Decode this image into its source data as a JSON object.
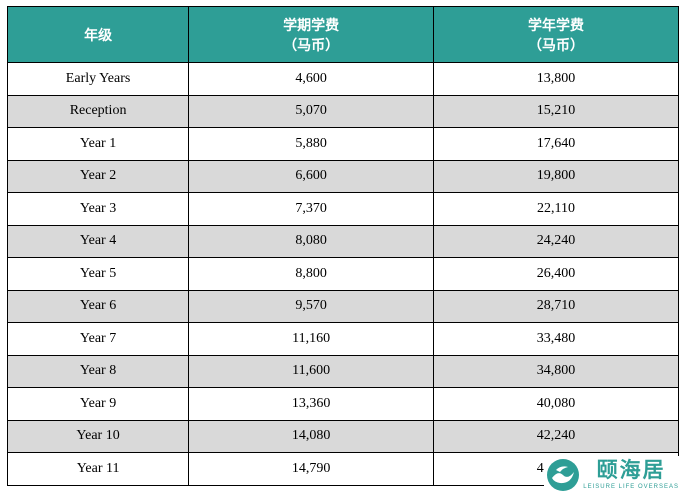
{
  "table": {
    "headers": [
      {
        "line1": "年级",
        "line2": ""
      },
      {
        "line1": "学期学费",
        "line2": "（马币）"
      },
      {
        "line1": "学年学费",
        "line2": "（马币）"
      }
    ],
    "rows": [
      {
        "grade": "Early Years",
        "term": "4,600",
        "year": "13,800"
      },
      {
        "grade": "Reception",
        "term": "5,070",
        "year": "15,210"
      },
      {
        "grade": "Year 1",
        "term": "5,880",
        "year": "17,640"
      },
      {
        "grade": "Year 2",
        "term": "6,600",
        "year": "19,800"
      },
      {
        "grade": "Year 3",
        "term": "7,370",
        "year": "22,110"
      },
      {
        "grade": "Year 4",
        "term": "8,080",
        "year": "24,240"
      },
      {
        "grade": "Year 5",
        "term": "8,800",
        "year": "26,400"
      },
      {
        "grade": "Year 6",
        "term": "9,570",
        "year": "28,710"
      },
      {
        "grade": "Year 7",
        "term": "11,160",
        "year": "33,480"
      },
      {
        "grade": "Year 8",
        "term": "11,600",
        "year": "34,800"
      },
      {
        "grade": "Year 9",
        "term": "13,360",
        "year": "40,080"
      },
      {
        "grade": "Year 10",
        "term": "14,080",
        "year": "42,240"
      },
      {
        "grade": "Year 11",
        "term": "14,790",
        "year": "44,370"
      }
    ]
  },
  "logo": {
    "name": "颐海居",
    "tagline": "LEISURE LIFE OVERSEAS"
  },
  "colors": {
    "header_bg": "#2e9e96",
    "alt_row_bg": "#d9d9d9",
    "border": "#000000",
    "brand": "#2e9e96"
  }
}
